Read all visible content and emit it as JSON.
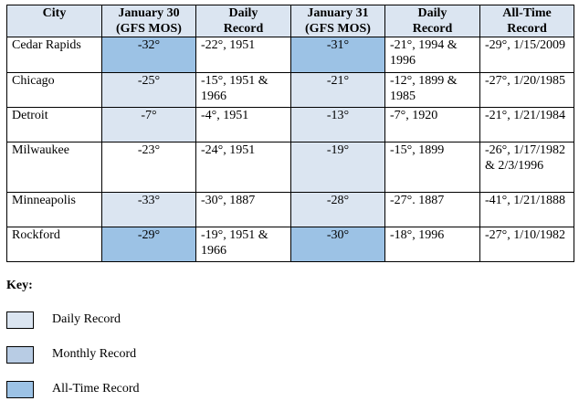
{
  "table": {
    "headers": {
      "city": "City",
      "jan30_line1": "January 30",
      "jan30_line2": "(GFS MOS)",
      "daily1_line1": "Daily",
      "daily1_line2": "Record",
      "jan31_line1": "January 31",
      "jan31_line2": "(GFS MOS)",
      "daily2_line1": "Daily",
      "daily2_line2": "Record",
      "alltime_line1": "All-Time",
      "alltime_line2": "Record"
    },
    "rows": [
      {
        "city": "Cedar Rapids",
        "jan30": "-32°",
        "jan30_level": "all-time",
        "daily30": "-22°, 1951",
        "jan31": "-31°",
        "jan31_level": "all-time",
        "daily31": "-21°, 1994 & 1996",
        "alltime": "-29°, 1/15/2009"
      },
      {
        "city": "Chicago",
        "jan30": "-25°",
        "jan30_level": "daily",
        "daily30": "-15°, 1951 & 1966",
        "jan31": "-21°",
        "jan31_level": "daily",
        "daily31": "-12°, 1899 & 1985",
        "alltime": "-27°, 1/20/1985"
      },
      {
        "city": "Detroit",
        "jan30": "-7°",
        "jan30_level": "daily",
        "daily30": "-4°, 1951",
        "jan31": "-13°",
        "jan31_level": "daily",
        "daily31": "-7°, 1920",
        "alltime": "-21°, 1/21/1984"
      },
      {
        "city": "Milwaukee",
        "jan30": "-23°",
        "jan30_level": "none",
        "daily30": "-24°, 1951",
        "jan31": "-19°",
        "jan31_level": "daily",
        "daily31": "-15°, 1899",
        "alltime": "-26°, 1/17/1982 & 2/3/1996"
      },
      {
        "city": "Minneapolis",
        "jan30": "-33°",
        "jan30_level": "daily",
        "daily30": "-30°, 1887",
        "jan31": "-28°",
        "jan31_level": "daily",
        "daily31": "-27°. 1887",
        "alltime": "-41°, 1/21/1888"
      },
      {
        "city": "Rockford",
        "jan30": "-29°",
        "jan30_level": "all-time",
        "daily30": "-19°, 1951 & 1966",
        "jan31": "-30°",
        "jan31_level": "all-time",
        "daily31": "-18°, 1996",
        "alltime": "-27°, 1/10/1982"
      }
    ]
  },
  "key": {
    "title": "Key:",
    "items": [
      {
        "label": "Daily Record",
        "color": "#dbe5f1"
      },
      {
        "label": "Monthly Record",
        "color": "#b8cce4"
      },
      {
        "label": "All-Time Record",
        "color": "#9cc2e5"
      }
    ]
  },
  "colors": {
    "header_bg": "#dbe5f1",
    "daily": "#dbe5f1",
    "monthly": "#b8cce4",
    "alltime": "#9cc2e5"
  }
}
